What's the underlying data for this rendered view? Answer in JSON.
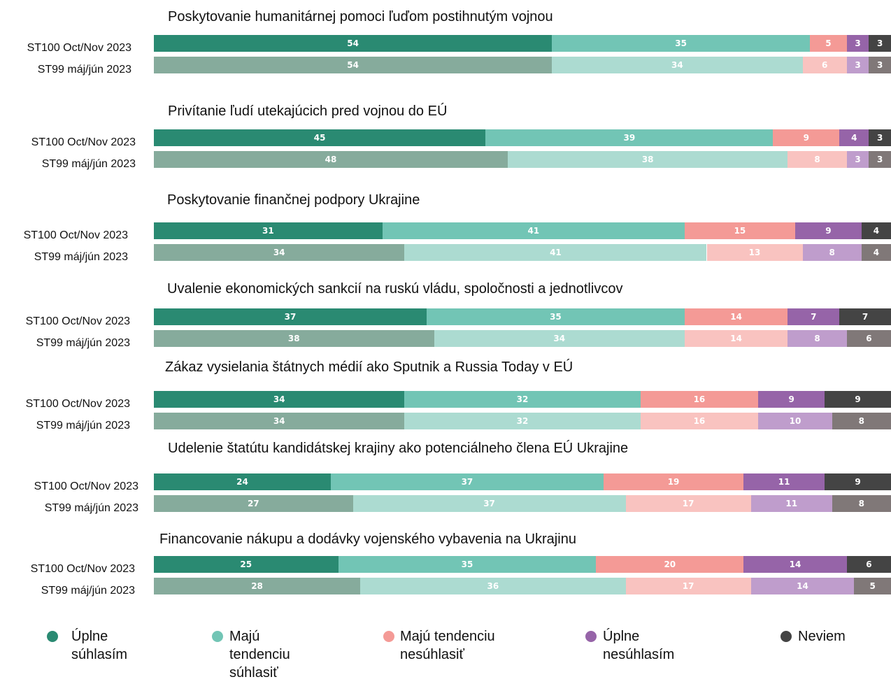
{
  "chart_data": {
    "type": "stacked_hbar",
    "xlim": [
      0,
      100
    ],
    "series": [
      {
        "name": "Úplne súhlasím",
        "color": "#2a8a72",
        "color_prior": "#86ab9c"
      },
      {
        "name": "Majú tendenciu súhlasiť",
        "color": "#72c5b5",
        "color_prior": "#acdbd1"
      },
      {
        "name": "Majú tendenciu nesúhlasiť",
        "color": "#f49a96",
        "color_prior": "#f9c3c0"
      },
      {
        "name": "Úplne nesúhlasím",
        "color": "#9664a8",
        "color_prior": "#bf9dcc"
      },
      {
        "name": "Neviem",
        "color": "#444444",
        "color_prior": "#807878"
      }
    ],
    "groups": [
      {
        "title": "Poskytovanie humanitárnej pomoci ľuďom postihnutým vojnou",
        "rows": [
          {
            "label": "ST100 Oct/Nov 2023",
            "values": [
              54,
              35,
              5,
              3,
              3
            ]
          },
          {
            "label": "ST99 máj/jún 2023",
            "values": [
              54,
              34,
              6,
              3,
              3
            ]
          }
        ]
      },
      {
        "title": "Privítanie ľudí utekajúcich pred vojnou do EÚ",
        "rows": [
          {
            "label": "ST100 Oct/Nov 2023",
            "values": [
              45,
              39,
              9,
              4,
              3
            ]
          },
          {
            "label": "ST99 máj/jún 2023",
            "values": [
              48,
              38,
              8,
              3,
              3
            ]
          }
        ]
      },
      {
        "title": "Poskytovanie finančnej podpory Ukrajine",
        "rows": [
          {
            "label": "ST100 Oct/Nov 2023",
            "values": [
              31,
              41,
              15,
              9,
              4
            ]
          },
          {
            "label": "ST99 máj/jún 2023",
            "values": [
              34,
              41,
              13,
              8,
              4
            ]
          }
        ]
      },
      {
        "title": "Uvalenie ekonomických sankcií na ruskú vládu, spoločnosti a jednotlivcov",
        "rows": [
          {
            "label": "ST100 Oct/Nov 2023",
            "values": [
              37,
              35,
              14,
              7,
              7
            ]
          },
          {
            "label": "ST99 máj/jún 2023",
            "values": [
              38,
              34,
              14,
              8,
              6
            ]
          }
        ]
      },
      {
        "title": "Zákaz vysielania štátnych médií ako Sputnik a Russia Today v EÚ",
        "rows": [
          {
            "label": "ST100 Oct/Nov 2023",
            "values": [
              34,
              32,
              16,
              9,
              9
            ]
          },
          {
            "label": "ST99 máj/jún 2023",
            "values": [
              34,
              32,
              16,
              10,
              8
            ]
          }
        ]
      },
      {
        "title": "Udelenie štatútu kandidátskej krajiny ako potenciálneho člena EÚ Ukrajine",
        "rows": [
          {
            "label": "ST100 Oct/Nov 2023",
            "values": [
              24,
              37,
              19,
              11,
              9
            ]
          },
          {
            "label": "ST99 máj/jún 2023",
            "values": [
              27,
              37,
              17,
              11,
              8
            ]
          }
        ]
      },
      {
        "title": "Financovanie nákupu a dodávky vojenského vybavenia na Ukrajinu",
        "rows": [
          {
            "label": "ST100 Oct/Nov 2023",
            "values": [
              25,
              35,
              20,
              14,
              6
            ]
          },
          {
            "label": "ST99 máj/jún 2023",
            "values": [
              28,
              36,
              17,
              14,
              5
            ]
          }
        ]
      }
    ]
  }
}
